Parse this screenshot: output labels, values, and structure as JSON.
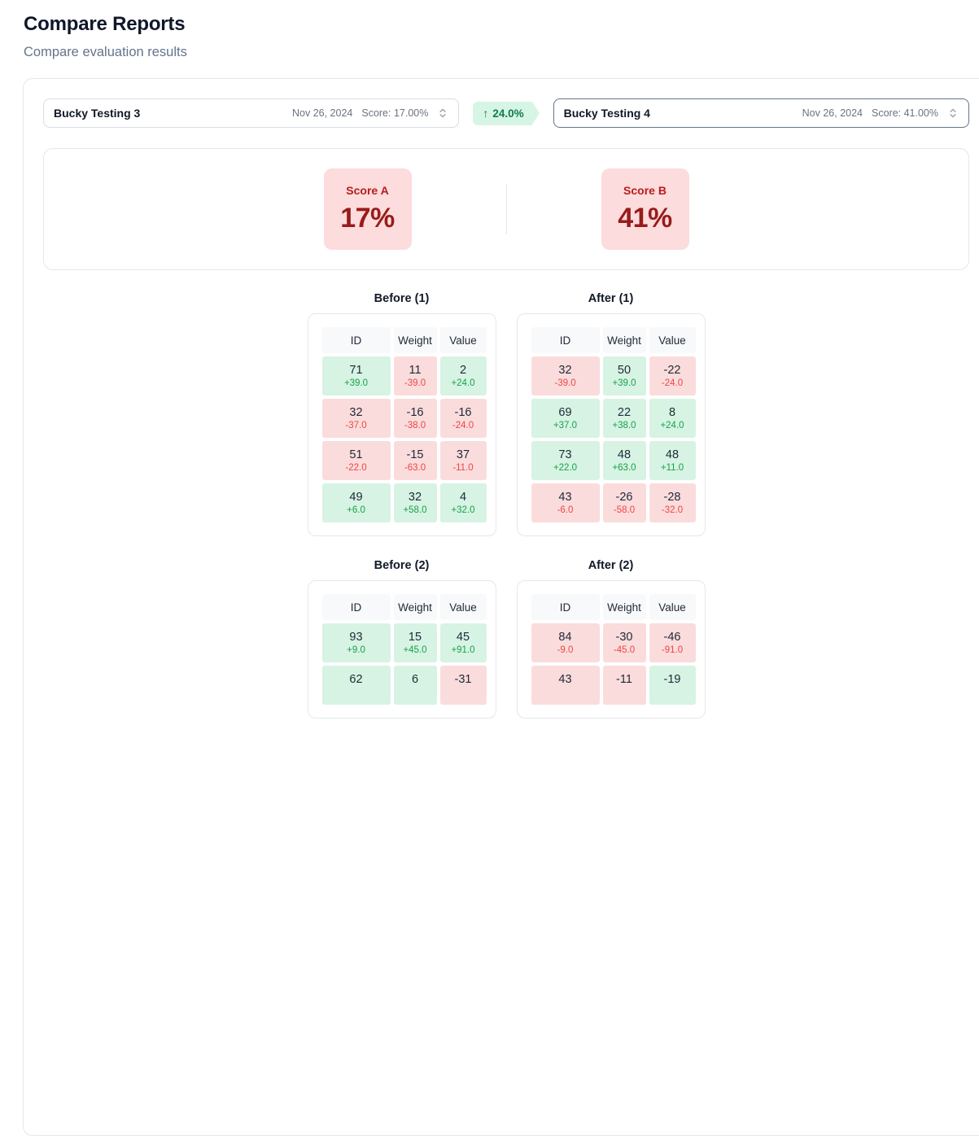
{
  "page": {
    "title": "Compare Reports",
    "subtitle": "Compare evaluation results"
  },
  "report_a": {
    "name": "Bucky Testing 3",
    "date": "Nov 26, 2024",
    "score_label": "Score: 17.00%"
  },
  "report_b": {
    "name": "Bucky Testing 4",
    "date": "Nov 26, 2024",
    "score_label": "Score: 41.00%"
  },
  "delta_badge": {
    "arrow": "↑",
    "text": "24.0%"
  },
  "scores": {
    "a": {
      "label": "Score A",
      "value": "17%"
    },
    "b": {
      "label": "Score B",
      "value": "41%"
    }
  },
  "icons": {
    "selector": "chevron-up-down-icon"
  },
  "colors": {
    "positive_bg": "#d7f3e3",
    "negative_bg": "#fbdcdc",
    "positive_text": "#16a34a",
    "negative_text": "#ef4444",
    "score_card_bg": "#fcdcdc",
    "score_label_text": "#b91c1c",
    "score_value_text": "#991b1b",
    "badge_bg": "#d7f5e4",
    "badge_text": "#0e7a4e"
  },
  "tables": [
    {
      "title": "Before (1)",
      "columns": [
        "ID",
        "Weight",
        "Value"
      ],
      "rows": [
        [
          {
            "value": "71",
            "delta": "+39.0",
            "trend": "up"
          },
          {
            "value": "11",
            "delta": "-39.0",
            "trend": "down"
          },
          {
            "value": "2",
            "delta": "+24.0",
            "trend": "up"
          }
        ],
        [
          {
            "value": "32",
            "delta": "-37.0",
            "trend": "down"
          },
          {
            "value": "-16",
            "delta": "-38.0",
            "trend": "down"
          },
          {
            "value": "-16",
            "delta": "-24.0",
            "trend": "down"
          }
        ],
        [
          {
            "value": "51",
            "delta": "-22.0",
            "trend": "down"
          },
          {
            "value": "-15",
            "delta": "-63.0",
            "trend": "down"
          },
          {
            "value": "37",
            "delta": "-11.0",
            "trend": "down"
          }
        ],
        [
          {
            "value": "49",
            "delta": "+6.0",
            "trend": "up"
          },
          {
            "value": "32",
            "delta": "+58.0",
            "trend": "up"
          },
          {
            "value": "4",
            "delta": "+32.0",
            "trend": "up"
          }
        ]
      ]
    },
    {
      "title": "After (1)",
      "columns": [
        "ID",
        "Weight",
        "Value"
      ],
      "rows": [
        [
          {
            "value": "32",
            "delta": "-39.0",
            "trend": "down"
          },
          {
            "value": "50",
            "delta": "+39.0",
            "trend": "up"
          },
          {
            "value": "-22",
            "delta": "-24.0",
            "trend": "down"
          }
        ],
        [
          {
            "value": "69",
            "delta": "+37.0",
            "trend": "up"
          },
          {
            "value": "22",
            "delta": "+38.0",
            "trend": "up"
          },
          {
            "value": "8",
            "delta": "+24.0",
            "trend": "up"
          }
        ],
        [
          {
            "value": "73",
            "delta": "+22.0",
            "trend": "up"
          },
          {
            "value": "48",
            "delta": "+63.0",
            "trend": "up"
          },
          {
            "value": "48",
            "delta": "+11.0",
            "trend": "up"
          }
        ],
        [
          {
            "value": "43",
            "delta": "-6.0",
            "trend": "down"
          },
          {
            "value": "-26",
            "delta": "-58.0",
            "trend": "down"
          },
          {
            "value": "-28",
            "delta": "-32.0",
            "trend": "down"
          }
        ]
      ]
    },
    {
      "title": "Before (2)",
      "columns": [
        "ID",
        "Weight",
        "Value"
      ],
      "rows": [
        [
          {
            "value": "93",
            "delta": "+9.0",
            "trend": "up"
          },
          {
            "value": "15",
            "delta": "+45.0",
            "trend": "up"
          },
          {
            "value": "45",
            "delta": "+91.0",
            "trend": "up"
          }
        ],
        [
          {
            "value": "62",
            "delta": "",
            "trend": "up"
          },
          {
            "value": "6",
            "delta": "",
            "trend": "up"
          },
          {
            "value": "-31",
            "delta": "",
            "trend": "down"
          }
        ]
      ]
    },
    {
      "title": "After (2)",
      "columns": [
        "ID",
        "Weight",
        "Value"
      ],
      "rows": [
        [
          {
            "value": "84",
            "delta": "-9.0",
            "trend": "down"
          },
          {
            "value": "-30",
            "delta": "-45.0",
            "trend": "down"
          },
          {
            "value": "-46",
            "delta": "-91.0",
            "trend": "down"
          }
        ],
        [
          {
            "value": "43",
            "delta": "",
            "trend": "down"
          },
          {
            "value": "-11",
            "delta": "",
            "trend": "down"
          },
          {
            "value": "-19",
            "delta": "",
            "trend": "up"
          }
        ]
      ]
    }
  ]
}
